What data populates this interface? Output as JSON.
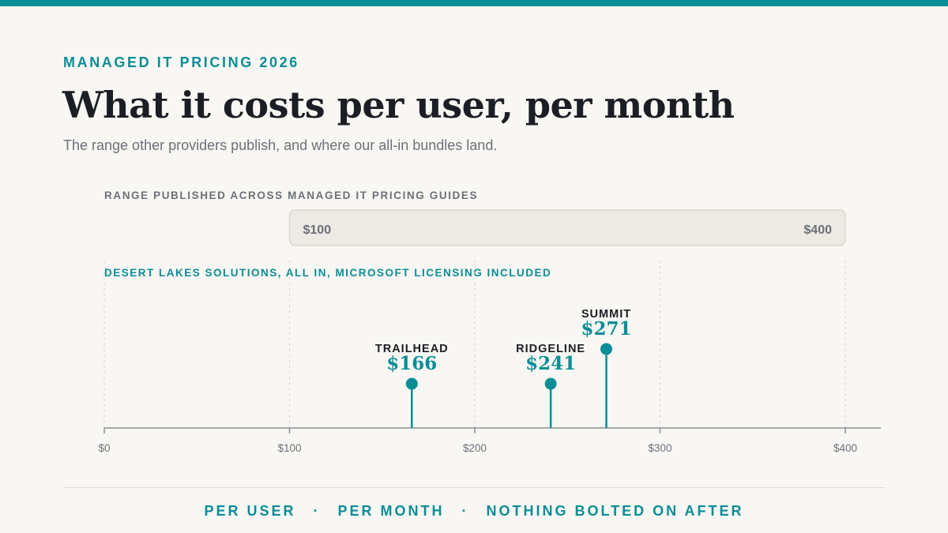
{
  "eyebrow": "MANAGED IT PRICING 2026",
  "title": "What it costs per user, per month",
  "subtitle": "The range other providers publish, and where our all-in bundles land.",
  "colors": {
    "accent": "#0a8d97",
    "range_fill": "#edeae3",
    "axis": "#8a8e94",
    "text_dark": "#1b1e24",
    "text_muted": "#6b7079"
  },
  "chart_data": {
    "type": "scatter",
    "xlim": [
      0,
      420
    ],
    "x_ticks": [
      0,
      100,
      200,
      300,
      400
    ],
    "x_tick_labels": [
      "$0",
      "$100",
      "$200",
      "$300",
      "$400"
    ],
    "range": {
      "label": "RANGE PUBLISHED ACROSS MANAGED IT PRICING GUIDES",
      "low": 100,
      "high": 400,
      "low_label": "$100",
      "high_label": "$400"
    },
    "series": [
      {
        "name": "DESERT LAKES SOLUTIONS, ALL IN, MICROSOFT LICENSING INCLUDED",
        "points": [
          {
            "name": "TRAILHEAD",
            "value": 166,
            "label": "$166"
          },
          {
            "name": "RIDGELINE",
            "value": 241,
            "label": "$241"
          },
          {
            "name": "SUMMIT",
            "value": 271,
            "label": "$271"
          }
        ]
      }
    ]
  },
  "footer": {
    "items": [
      "PER USER",
      "PER MONTH",
      "NOTHING BOLTED ON AFTER"
    ],
    "separator": "·"
  }
}
